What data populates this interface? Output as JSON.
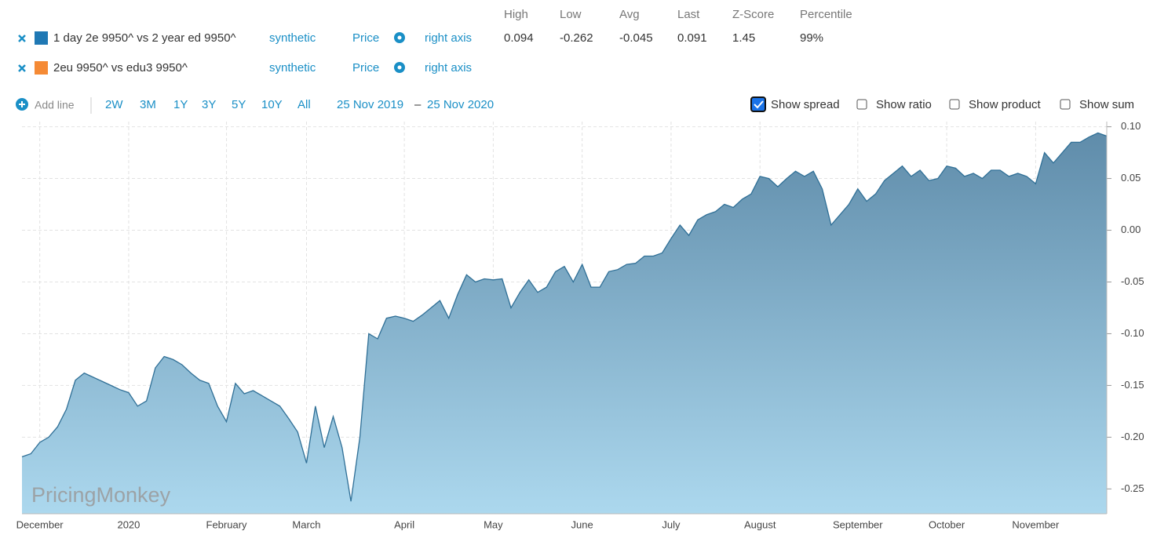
{
  "legend": {
    "headers": [
      "High",
      "Low",
      "Avg",
      "Last",
      "Z-Score",
      "Percentile"
    ],
    "rows": [
      {
        "name": "1 day 2e 9950^ vs 2 year ed 9950^",
        "color": "#1f78b4",
        "source": "synthetic",
        "field": "Price",
        "axis": "right axis",
        "stats": [
          "0.094",
          "-0.262",
          "-0.045",
          "0.091",
          "1.45",
          "99%"
        ]
      },
      {
        "name": "2eu 9950^ vs edu3 9950^",
        "color": "#f58a35",
        "source": "synthetic",
        "field": "Price",
        "axis": "right axis"
      }
    ]
  },
  "controls": {
    "add_line": "Add line",
    "ranges": [
      "2W",
      "3M",
      "1Y",
      "3Y",
      "5Y",
      "10Y",
      "All"
    ],
    "date_from": "25 Nov 2019",
    "date_sep": "–",
    "date_to": "25 Nov 2020",
    "options": [
      {
        "label": "Show spread",
        "checked": true
      },
      {
        "label": "Show ratio",
        "checked": false
      },
      {
        "label": "Show product",
        "checked": false
      },
      {
        "label": "Show sum",
        "checked": false
      }
    ]
  },
  "watermark": "PricingMonkey",
  "chart_data": {
    "type": "area",
    "color": "#2f6f96",
    "fill_top": "#5f8caa",
    "fill_bottom": "#acd8ee",
    "grid": true,
    "categories": [
      null,
      null,
      "December",
      null,
      null,
      null,
      null,
      null,
      null,
      null,
      null,
      null,
      "2020",
      null,
      null,
      null,
      null,
      null,
      null,
      null,
      null,
      null,
      null,
      "February",
      null,
      null,
      null,
      null,
      null,
      null,
      null,
      null,
      "March",
      null,
      null,
      null,
      null,
      null,
      null,
      null,
      null,
      null,
      null,
      "April",
      null,
      null,
      null,
      null,
      null,
      null,
      null,
      null,
      null,
      "May",
      null,
      null,
      null,
      null,
      null,
      null,
      null,
      null,
      null,
      "June",
      null,
      null,
      null,
      null,
      null,
      null,
      null,
      null,
      null,
      "July",
      null,
      null,
      null,
      null,
      null,
      null,
      null,
      null,
      null,
      "August",
      null,
      null,
      null,
      null,
      null,
      null,
      null,
      null,
      null,
      null,
      "September",
      null,
      null,
      null,
      null,
      null,
      null,
      null,
      null,
      null,
      "October",
      null,
      null,
      null,
      null,
      null,
      null,
      null,
      null,
      null,
      "November",
      null,
      null,
      null,
      null,
      null,
      null,
      null,
      null
    ],
    "values": [
      -0.219,
      -0.216,
      -0.205,
      -0.2,
      -0.19,
      -0.173,
      -0.145,
      -0.138,
      -0.142,
      -0.146,
      -0.15,
      -0.154,
      -0.157,
      -0.17,
      -0.165,
      -0.133,
      -0.122,
      -0.125,
      -0.13,
      -0.138,
      -0.145,
      -0.148,
      -0.17,
      -0.185,
      -0.148,
      -0.158,
      -0.155,
      -0.16,
      -0.165,
      -0.17,
      -0.182,
      -0.195,
      -0.225,
      -0.17,
      -0.21,
      -0.18,
      -0.21,
      -0.262,
      -0.2,
      -0.1,
      -0.105,
      -0.085,
      -0.083,
      -0.085,
      -0.088,
      -0.082,
      -0.075,
      -0.068,
      -0.085,
      -0.062,
      -0.043,
      -0.05,
      -0.047,
      -0.048,
      -0.047,
      -0.075,
      -0.06,
      -0.048,
      -0.06,
      -0.055,
      -0.04,
      -0.035,
      -0.05,
      -0.033,
      -0.055,
      -0.055,
      -0.04,
      -0.038,
      -0.033,
      -0.032,
      -0.025,
      -0.025,
      -0.022,
      -0.008,
      0.005,
      -0.005,
      0.01,
      0.015,
      0.018,
      0.025,
      0.022,
      0.03,
      0.035,
      0.052,
      0.05,
      0.042,
      0.05,
      0.057,
      0.052,
      0.057,
      0.04,
      0.005,
      0.015,
      0.025,
      0.04,
      0.028,
      0.035,
      0.048,
      0.055,
      0.062,
      0.052,
      0.058,
      0.048,
      0.05,
      0.062,
      0.06,
      0.052,
      0.055,
      0.05,
      0.058,
      0.058,
      0.052,
      0.055,
      0.052,
      0.045,
      0.075,
      0.065,
      0.075,
      0.085,
      0.085,
      0.09,
      0.094,
      0.091
    ],
    "ylim": [
      -0.274,
      0.105
    ],
    "yticks": [
      {
        "value": 0.1,
        "label": "0.10"
      },
      0.05,
      {
        "value": 0,
        "label": "0.00"
      },
      -0.05,
      {
        "value": -0.1,
        "label": "-0.10"
      },
      -0.15,
      {
        "value": -0.2,
        "label": "-0.20"
      },
      -0.25
    ]
  }
}
